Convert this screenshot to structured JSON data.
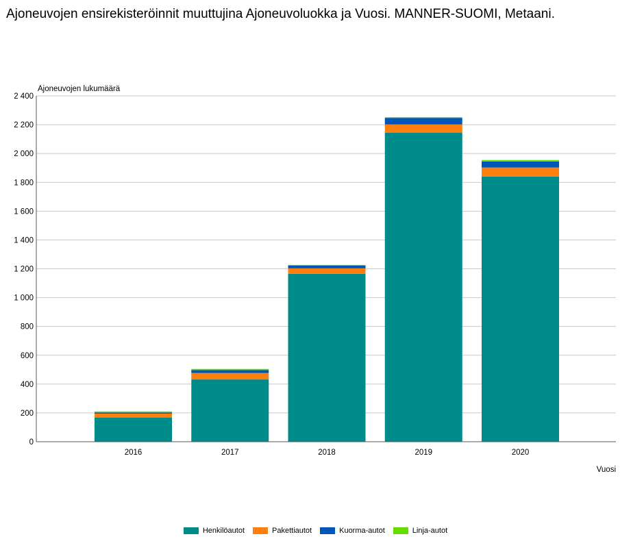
{
  "title": "Ajoneuvojen ensirekisteröinnit muuttujina Ajoneuvoluokka ja Vuosi. MANNER-SUOMI, Metaani.",
  "chart_data": {
    "type": "bar",
    "stacked": true,
    "title": "Ajoneuvojen ensirekisteröinnit muuttujina Ajoneuvoluokka ja Vuosi. MANNER-SUOMI, Metaani.",
    "xlabel": "Vuosi",
    "ylabel": "Ajoneuvojen lukumäärä",
    "ylim": [
      0,
      2400
    ],
    "yticks": [
      0,
      200,
      400,
      600,
      800,
      1000,
      1200,
      1400,
      1600,
      1800,
      2000,
      2200,
      2400
    ],
    "ytick_labels": [
      "0",
      "200",
      "400",
      "600",
      "800",
      "1 000",
      "1 200",
      "1 400",
      "1 600",
      "1 800",
      "2 000",
      "2 200",
      "2 400"
    ],
    "categories": [
      "2016",
      "2017",
      "2018",
      "2019",
      "2020"
    ],
    "grid": true,
    "legend_position": "bottom",
    "series": [
      {
        "name": "Henkilöautot",
        "color": "#008b8b",
        "values": [
          168,
          432,
          1165,
          2145,
          1840
        ]
      },
      {
        "name": "Pakettiautot",
        "color": "#ff7f0e",
        "values": [
          27,
          45,
          38,
          57,
          63
        ]
      },
      {
        "name": "Kuorma-autot",
        "color": "#0055bb",
        "values": [
          8,
          20,
          20,
          45,
          42
        ]
      },
      {
        "name": "Linja-autot",
        "color": "#66dd00",
        "values": [
          7,
          8,
          4,
          5,
          10
        ]
      }
    ]
  }
}
